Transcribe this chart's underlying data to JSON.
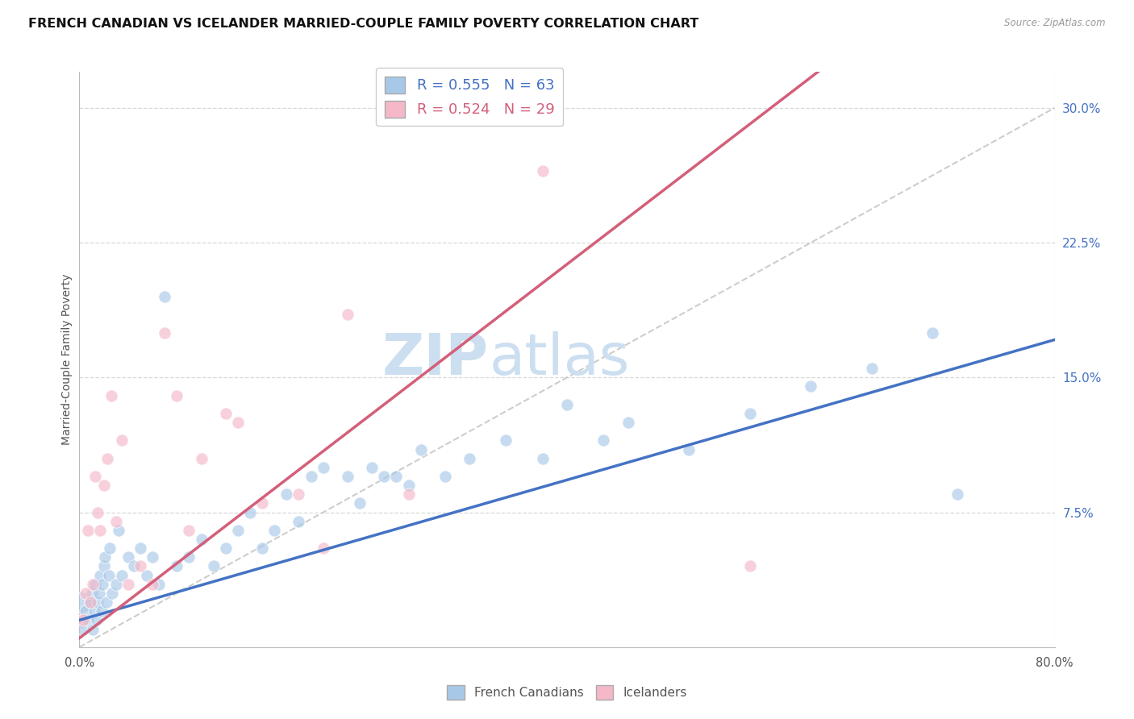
{
  "title": "FRENCH CANADIAN VS ICELANDER MARRIED-COUPLE FAMILY POVERTY CORRELATION CHART",
  "source": "Source: ZipAtlas.com",
  "ylabel": "Married-Couple Family Poverty",
  "ytick_labels": [
    "7.5%",
    "15.0%",
    "22.5%",
    "30.0%"
  ],
  "ytick_values": [
    7.5,
    15.0,
    22.5,
    30.0
  ],
  "xlim": [
    0,
    80
  ],
  "ylim": [
    0,
    32
  ],
  "blue_R": 0.555,
  "blue_N": 63,
  "pink_R": 0.524,
  "pink_N": 29,
  "blue_color": "#a8c8e8",
  "pink_color": "#f4b8c8",
  "blue_line_color": "#4472c4",
  "pink_line_color": "#d45f7a",
  "ref_line_color": "#c8c8c8",
  "watermark": "ZIPatlas",
  "watermark_color": "#ccdff0",
  "grid_color": "#d8d8d8",
  "background_color": "#ffffff",
  "title_fontsize": 11.5,
  "label_fontsize": 10,
  "tick_fontsize": 10.5,
  "legend_fontsize": 13,
  "blue_line_intercept": 1.5,
  "blue_line_slope": 0.195,
  "pink_line_intercept": 0.5,
  "pink_line_slope": 0.52,
  "blue_x": [
    0.3,
    0.5,
    0.7,
    0.9,
    1.0,
    1.1,
    1.2,
    1.3,
    1.4,
    1.5,
    1.6,
    1.7,
    1.8,
    1.9,
    2.0,
    2.1,
    2.2,
    2.4,
    2.5,
    2.7,
    3.0,
    3.2,
    3.5,
    4.0,
    4.5,
    5.0,
    5.5,
    6.0,
    6.5,
    7.0,
    8.0,
    9.0,
    10.0,
    11.0,
    12.0,
    13.0,
    14.0,
    15.0,
    16.0,
    17.0,
    18.0,
    19.0,
    20.0,
    22.0,
    23.0,
    24.0,
    25.0,
    26.0,
    27.0,
    28.0,
    30.0,
    32.0,
    35.0,
    38.0,
    40.0,
    43.0,
    45.0,
    50.0,
    55.0,
    60.0,
    65.0,
    70.0,
    72.0
  ],
  "blue_y": [
    1.0,
    2.0,
    1.5,
    2.5,
    3.0,
    1.0,
    2.0,
    3.5,
    1.5,
    2.5,
    3.0,
    4.0,
    2.0,
    3.5,
    4.5,
    5.0,
    2.5,
    4.0,
    5.5,
    3.0,
    3.5,
    6.5,
    4.0,
    5.0,
    4.5,
    5.5,
    4.0,
    5.0,
    3.5,
    19.5,
    4.5,
    5.0,
    6.0,
    4.5,
    5.5,
    6.5,
    7.5,
    5.5,
    6.5,
    8.5,
    7.0,
    9.5,
    10.0,
    9.5,
    8.0,
    10.0,
    9.5,
    9.5,
    9.0,
    11.0,
    9.5,
    10.5,
    11.5,
    10.5,
    13.5,
    11.5,
    12.5,
    11.0,
    13.0,
    14.5,
    15.5,
    17.5,
    8.5
  ],
  "pink_x": [
    0.3,
    0.5,
    0.7,
    0.9,
    1.1,
    1.3,
    1.5,
    1.7,
    2.0,
    2.3,
    2.6,
    3.0,
    3.5,
    4.0,
    5.0,
    6.0,
    7.0,
    8.0,
    9.0,
    10.0,
    12.0,
    13.0,
    15.0,
    18.0,
    20.0,
    22.0,
    27.0,
    38.0,
    55.0
  ],
  "pink_y": [
    1.5,
    3.0,
    6.5,
    2.5,
    3.5,
    9.5,
    7.5,
    6.5,
    9.0,
    10.5,
    14.0,
    7.0,
    11.5,
    3.5,
    4.5,
    3.5,
    17.5,
    14.0,
    6.5,
    10.5,
    13.0,
    12.5,
    8.0,
    8.5,
    5.5,
    18.5,
    8.5,
    26.5,
    4.5
  ],
  "blue_dot_size": 120,
  "pink_dot_size": 120,
  "big_blue_size": 350,
  "big_pink_size": 200
}
